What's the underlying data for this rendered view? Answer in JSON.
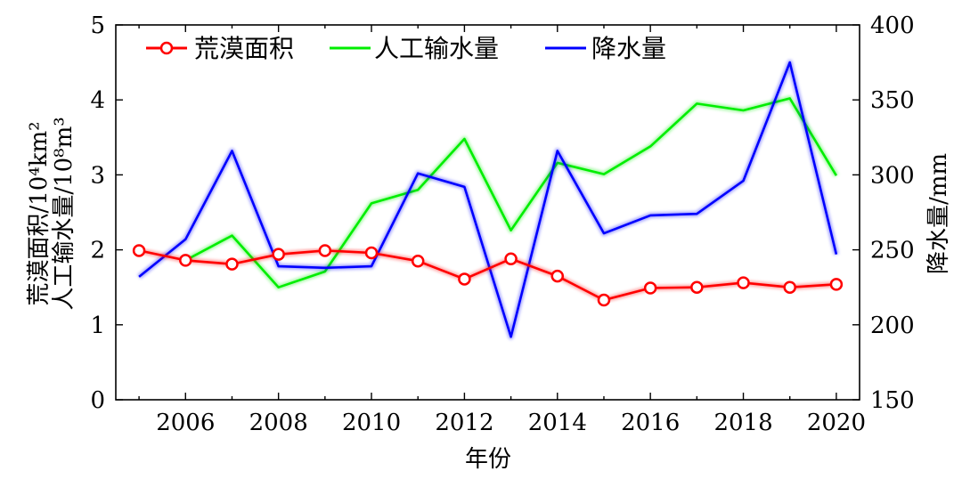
{
  "chart_data": {
    "type": "line",
    "x": [
      2005,
      2006,
      2007,
      2008,
      2009,
      2010,
      2011,
      2012,
      2013,
      2014,
      2015,
      2016,
      2017,
      2018,
      2019,
      2020
    ],
    "xticks": [
      2006,
      2008,
      2010,
      2012,
      2014,
      2016,
      2018,
      2020
    ],
    "xlim": [
      2004.5,
      2020.5
    ],
    "xlabel": "年份",
    "ylabel_left_line1": "荒漠面积/10⁴km²",
    "ylabel_left_line2": "人工输水量/10⁸m³",
    "ylim_left": [
      0,
      5
    ],
    "yticks_left": [
      0,
      1,
      2,
      3,
      4,
      5
    ],
    "ylabel_right": "降水量/mm",
    "ylim_right": [
      150,
      400
    ],
    "yticks_right": [
      150,
      200,
      250,
      300,
      350,
      400
    ],
    "series": [
      {
        "name": "荒漠面积",
        "axis": "left",
        "color": "#ff0000",
        "marker": "circle",
        "x": [
          2005,
          2006,
          2007,
          2008,
          2009,
          2010,
          2011,
          2012,
          2013,
          2014,
          2015,
          2016,
          2017,
          2018,
          2019,
          2020
        ],
        "values": [
          1.99,
          1.86,
          1.81,
          1.94,
          1.99,
          1.96,
          1.85,
          1.61,
          1.88,
          1.65,
          1.33,
          1.49,
          1.5,
          1.56,
          1.5,
          1.54
        ]
      },
      {
        "name": "人工输水量",
        "axis": "left",
        "color": "#00ee00",
        "marker": "none",
        "x": [
          2006,
          2007,
          2008,
          2009,
          2010,
          2011,
          2012,
          2013,
          2014,
          2015,
          2016,
          2017,
          2018,
          2019,
          2020
        ],
        "values": [
          1.86,
          2.19,
          1.5,
          1.71,
          2.62,
          2.8,
          3.48,
          2.26,
          3.16,
          3.01,
          3.38,
          3.95,
          3.86,
          4.02,
          2.99
        ]
      },
      {
        "name": "降水量",
        "axis": "right",
        "color": "#0000ff",
        "marker": "none",
        "x": [
          2005,
          2006,
          2007,
          2008,
          2009,
          2010,
          2011,
          2012,
          2013,
          2014,
          2015,
          2016,
          2017,
          2018,
          2019,
          2020
        ],
        "values": [
          232,
          257,
          316,
          239,
          238,
          239,
          301,
          292,
          192,
          316,
          261,
          273,
          274,
          296,
          375,
          247
        ]
      }
    ]
  }
}
